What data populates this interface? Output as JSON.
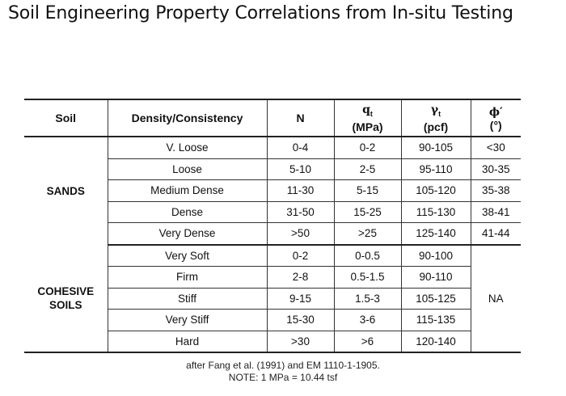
{
  "title": "Soil Engineering Property Correlations from In-situ Testing",
  "table": {
    "headers": {
      "soil": "Soil",
      "density": "Density/Consistency",
      "n": "N",
      "qt_symbol": "q",
      "qt_sub": "t",
      "qt_unit": "(MPa)",
      "gamma_symbol": "γ",
      "gamma_sub": "t",
      "gamma_unit": "(pcf)",
      "phi_symbol": "ϕ′",
      "phi_unit": "(°)"
    },
    "sands": {
      "label": "SANDS",
      "rows": [
        {
          "density": "V. Loose",
          "n": "0-4",
          "qt": "0-2",
          "gamma": "90-105",
          "phi": "<30"
        },
        {
          "density": "Loose",
          "n": "5-10",
          "qt": "2-5",
          "gamma": "95-110",
          "phi": "30-35"
        },
        {
          "density": "Medium Dense",
          "n": "11-30",
          "qt": "5-15",
          "gamma": "105-120",
          "phi": "35-38"
        },
        {
          "density": "Dense",
          "n": "31-50",
          "qt": "15-25",
          "gamma": "115-130",
          "phi": "38-41"
        },
        {
          "density": "Very Dense",
          "n": ">50",
          "qt": ">25",
          "gamma": "125-140",
          "phi": "41-44"
        }
      ]
    },
    "cohesive": {
      "label_line1": "COHESIVE",
      "label_line2": "SOILS",
      "phi": "NA",
      "rows": [
        {
          "density": "Very Soft",
          "n": "0-2",
          "qt": "0-0.5",
          "gamma": "90-100"
        },
        {
          "density": "Firm",
          "n": "2-8",
          "qt": "0.5-1.5",
          "gamma": "90-110"
        },
        {
          "density": "Stiff",
          "n": "9-15",
          "qt": "1.5-3",
          "gamma": "105-125"
        },
        {
          "density": "Very Stiff",
          "n": "15-30",
          "qt": "3-6",
          "gamma": "115-135"
        },
        {
          "density": "Hard",
          "n": ">30",
          "qt": ">6",
          "gamma": "120-140"
        }
      ]
    }
  },
  "footnote": {
    "source": "after Fang et al. (1991) and EM 1110-1-1905.",
    "note": "NOTE: 1 MPa = 10.44 tsf"
  }
}
